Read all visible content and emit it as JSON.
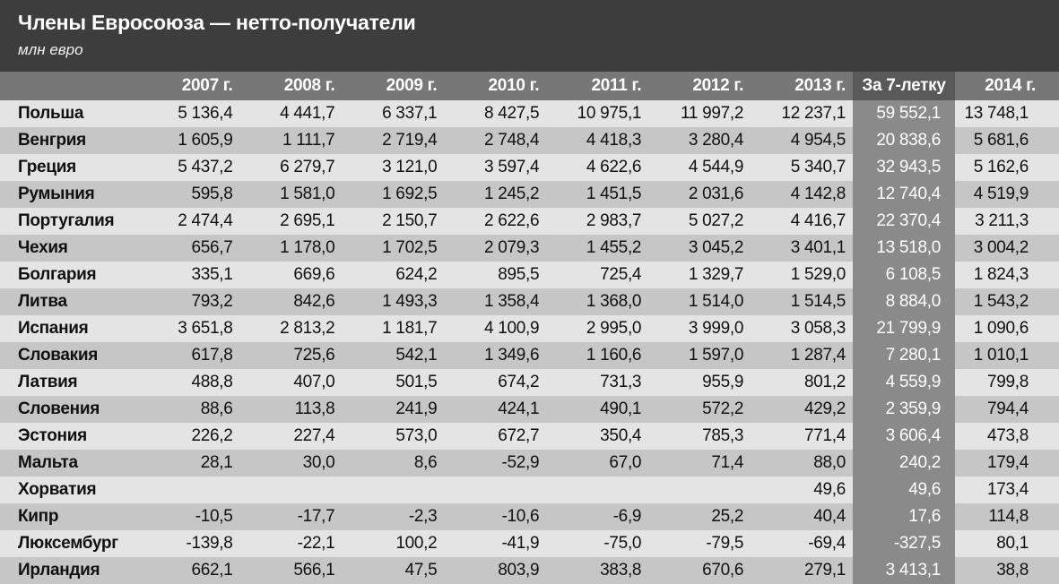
{
  "title": "Члены Евросоюза — нетто-получатели",
  "subtitle": "млн евро",
  "chart_data": {
    "type": "table",
    "columns": [
      "2007 г.",
      "2008 г.",
      "2009 г.",
      "2010 г.",
      "2011 г.",
      "2012 г.",
      "2013 г.",
      "За 7-летку",
      "2014 г."
    ],
    "rows": [
      {
        "country": "Польша",
        "values": [
          "5 136,4",
          "4 441,7",
          "6 337,1",
          "8 427,5",
          "10 975,1",
          "11 997,2",
          "12 237,1",
          "59 552,1",
          "13 748,1"
        ]
      },
      {
        "country": "Венгрия",
        "values": [
          "1 605,9",
          "1 111,7",
          "2 719,4",
          "2 748,4",
          "4 418,3",
          "3 280,4",
          "4 954,5",
          "20 838,6",
          "5 681,6"
        ]
      },
      {
        "country": "Греция",
        "values": [
          "5 437,2",
          "6 279,7",
          "3 121,0",
          "3 597,4",
          "4 622,6",
          "4 544,9",
          "5 340,7",
          "32 943,5",
          "5 162,6"
        ]
      },
      {
        "country": "Румыния",
        "values": [
          "595,8",
          "1 581,0",
          "1 692,5",
          "1 245,2",
          "1 451,5",
          "2 031,6",
          "4 142,8",
          "12 740,4",
          "4 519,9"
        ]
      },
      {
        "country": "Португалия",
        "values": [
          "2 474,4",
          "2 695,1",
          "2 150,7",
          "2 622,6",
          "2 983,7",
          "5 027,2",
          "4 416,7",
          "22 370,4",
          "3 211,3"
        ]
      },
      {
        "country": "Чехия",
        "values": [
          "656,7",
          "1 178,0",
          "1 702,5",
          "2 079,3",
          "1 455,2",
          "3 045,2",
          "3 401,1",
          "13 518,0",
          "3 004,2"
        ]
      },
      {
        "country": "Болгария",
        "values": [
          "335,1",
          "669,6",
          "624,2",
          "895,5",
          "725,4",
          "1 329,7",
          "1 529,0",
          "6 108,5",
          "1 824,3"
        ]
      },
      {
        "country": "Литва",
        "values": [
          "793,2",
          "842,6",
          "1 493,3",
          "1 358,4",
          "1 368,0",
          "1 514,0",
          "1 514,5",
          "8 884,0",
          "1 543,2"
        ]
      },
      {
        "country": "Испания",
        "values": [
          "3 651,8",
          "2 813,2",
          "1 181,7",
          "4 100,9",
          "2 995,0",
          "3 999,0",
          "3 058,3",
          "21 799,9",
          "1 090,6"
        ]
      },
      {
        "country": "Словакия",
        "values": [
          "617,8",
          "725,6",
          "542,1",
          "1 349,6",
          "1 160,6",
          "1 597,0",
          "1 287,4",
          "7 280,1",
          "1 010,1"
        ]
      },
      {
        "country": "Латвия",
        "values": [
          "488,8",
          "407,0",
          "501,5",
          "674,2",
          "731,3",
          "955,9",
          "801,2",
          "4 559,9",
          "799,8"
        ]
      },
      {
        "country": "Словения",
        "values": [
          "88,6",
          "113,8",
          "241,9",
          "424,1",
          "490,1",
          "572,2",
          "429,2",
          "2 359,9",
          "794,4"
        ]
      },
      {
        "country": "Эстония",
        "values": [
          "226,2",
          "227,4",
          "573,0",
          "672,7",
          "350,4",
          "785,3",
          "771,4",
          "3 606,4",
          "473,8"
        ]
      },
      {
        "country": "Мальта",
        "values": [
          "28,1",
          "30,0",
          "8,6",
          "-52,9",
          "67,0",
          "71,4",
          "88,0",
          "240,2",
          "179,4"
        ]
      },
      {
        "country": "Хорватия",
        "values": [
          "",
          "",
          "",
          "",
          "",
          "",
          "49,6",
          "49,6",
          "173,4"
        ]
      },
      {
        "country": "Кипр",
        "values": [
          "-10,5",
          "-17,7",
          "-2,3",
          "-10,6",
          "-6,9",
          "25,2",
          "40,4",
          "17,6",
          "114,8"
        ]
      },
      {
        "country": "Люксембург",
        "values": [
          "-139,8",
          "-22,1",
          "100,2",
          "-41,9",
          "-75,0",
          "-79,5",
          "-69,4",
          "-327,5",
          "80,1"
        ]
      },
      {
        "country": "Ирландия",
        "values": [
          "662,1",
          "566,1",
          "47,5",
          "803,9",
          "383,8",
          "670,6",
          "279,1",
          "3 413,1",
          "38,8"
        ]
      }
    ]
  }
}
